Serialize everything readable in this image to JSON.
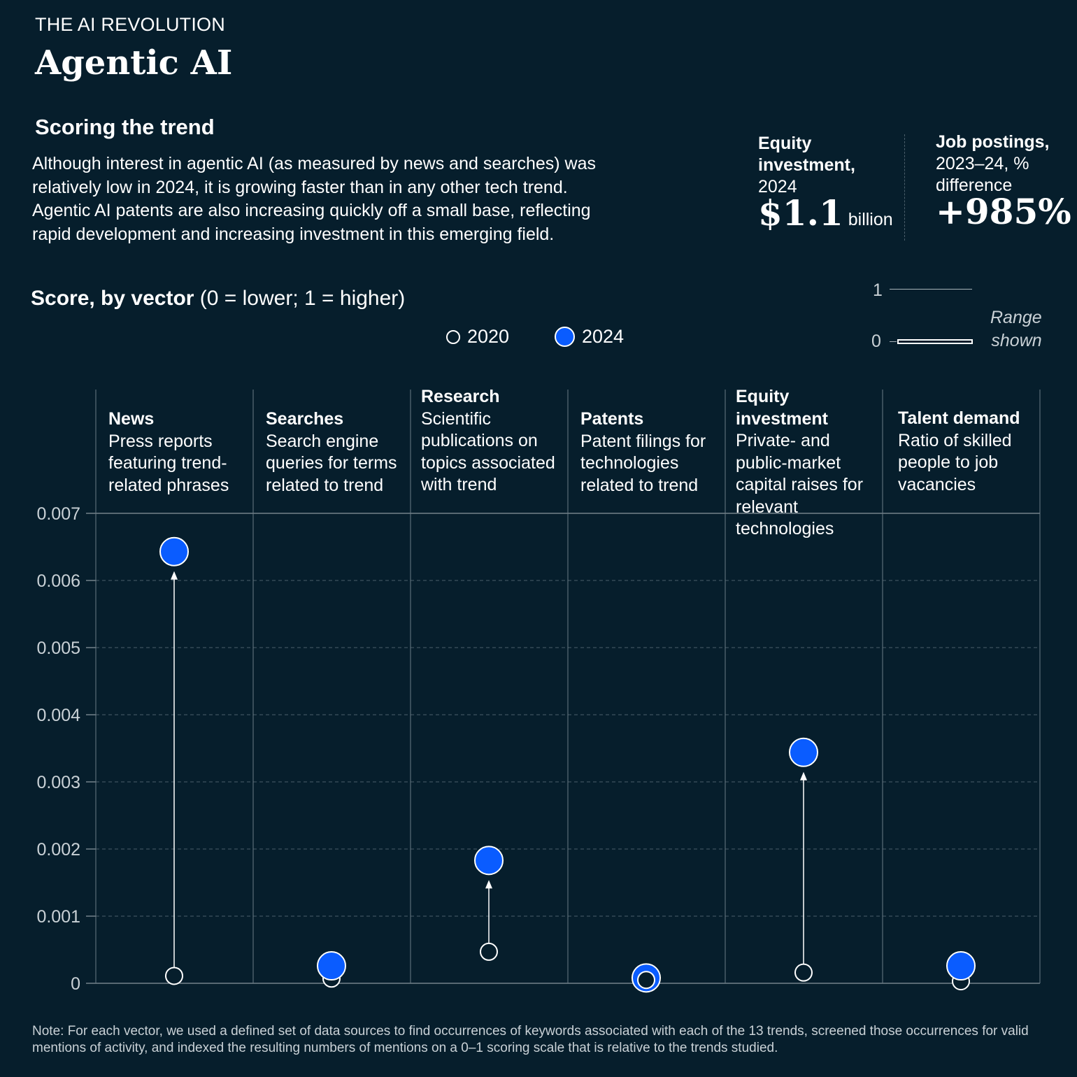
{
  "header": {
    "kicker": "THE AI REVOLUTION",
    "title": "Agentic AI",
    "subtitle": "Scoring the trend",
    "description": "Although interest in agentic AI (as measured by news and searches) was relatively low in 2024, it is growing faster than in any other tech trend. Agentic AI patents are also increasing quickly off a small base, reflecting rapid development and increasing investment in this emerging field."
  },
  "kpis": [
    {
      "label_bold": "Equity investment,",
      "label": "2024",
      "value": "$1.1",
      "unit": "billion"
    },
    {
      "label_bold": "Job postings,",
      "label": "2023–24, % difference",
      "value": "+985%",
      "unit": ""
    }
  ],
  "range_legend": {
    "top": "1",
    "bottom": "0",
    "text1": "Range",
    "text2": "shown",
    "range_fraction": [
      0,
      0.007
    ]
  },
  "colors": {
    "background": "#061e2c",
    "series_2024": "#0a5cff",
    "series_2020": "#061e2c",
    "outline": "#ffffff"
  },
  "chart_data": {
    "type": "scatter",
    "title": "Score, by vector",
    "title_note": "(0 = lower; 1 = higher)",
    "ylim": [
      0,
      0.007
    ],
    "yticks": [
      "0",
      "0.001",
      "0.002",
      "0.003",
      "0.004",
      "0.005",
      "0.006",
      "0.007"
    ],
    "grid": true,
    "legend_placement": "top-center",
    "categories": [
      {
        "name": "News",
        "desc": "Press reports featuring trend-related phrases"
      },
      {
        "name": "Searches",
        "desc": "Search engine queries for terms related to trend"
      },
      {
        "name": "Research",
        "desc": "Scientific publications on topics associated with trend"
      },
      {
        "name": "Patents",
        "desc": "Patent filings for technologies related to trend"
      },
      {
        "name": "Equity investment",
        "desc": "Private- and public-market capital raises for relevant technologies"
      },
      {
        "name": "Talent demand",
        "desc": "Ratio of skilled people to job vacancies"
      }
    ],
    "series": [
      {
        "name": "2020",
        "values": [
          0.00011,
          7e-05,
          0.00047,
          6e-05,
          0.00016,
          3e-05
        ]
      },
      {
        "name": "2024",
        "values": [
          0.00643,
          0.00026,
          0.00183,
          8e-05,
          0.00344,
          0.00026
        ]
      }
    ]
  },
  "note": "Note: For each vector, we used a defined set of data sources to find occurrences of keywords associated with each of the 13 trends, screened those occurrences for valid mentions of activity, and indexed the resulting numbers of mentions on a 0–1 scoring scale that is relative to the trends studied."
}
